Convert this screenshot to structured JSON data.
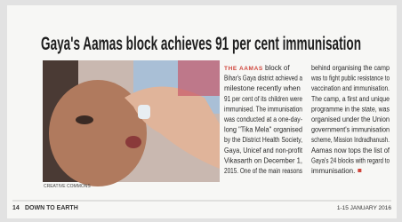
{
  "headline": "Gaya's Aamas block achieves 91 per cent immunisation",
  "photo_credit": "CREATIVE COMMONS",
  "article": {
    "lead": "THE AAMAS",
    "column_1": [
      " block of",
      "Bihar's Gaya district achieved a",
      "milestone recently when",
      "91 per cent of its children were",
      "immunised. The immunisation",
      "was conducted at a one-day-",
      "long \"Tika Mela\" organised",
      "by the District Health Society,",
      "Gaya, Unicef and non-profit",
      "Vikasarth on December 1,",
      "2015. One of the main reasons"
    ],
    "column_2": [
      "behind organising the camp",
      "was to fight public resistance to",
      "vaccination and immunisation.",
      "The camp, a first and unique",
      "programme in the state, was",
      "organised under the Union",
      "government's immunisation",
      "scheme, Mission Indradhanush.",
      "Aamas now tops the list of",
      "Gaya's 24 blocks with regard to",
      "immunisation."
    ]
  },
  "footer": {
    "page": "14",
    "magazine": "DOWN TO EARTH",
    "date": "1-15 JANUARY 2016"
  }
}
